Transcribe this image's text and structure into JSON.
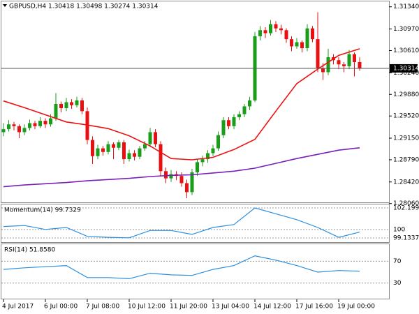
{
  "chart_data": [
    {
      "type": "candlestick",
      "title": "GBPUSD,H4  1.30418 1.30498 1.30274 1.30314",
      "categories": [
        "4 Jul 2017",
        null,
        null,
        null,
        null,
        null,
        null,
        null,
        "6 Jul 00:00",
        null,
        null,
        null,
        null,
        null,
        null,
        null,
        "7 Jul 08:00",
        null,
        null,
        null,
        null,
        null,
        null,
        null,
        "10 Jul 12:00",
        null,
        null,
        null,
        null,
        null,
        null,
        null,
        "11 Jul 20:00",
        null,
        null,
        null,
        null,
        null,
        null,
        null,
        "13 Jul 04:00",
        null,
        null,
        null,
        null,
        null,
        null,
        null,
        "14 Jul 12:00",
        null,
        null,
        null,
        null,
        null,
        null,
        null,
        "17 Jul 16:00",
        null,
        null,
        null,
        null,
        null,
        null,
        null,
        "19 Jul 00:00",
        null,
        null,
        null,
        null
      ],
      "candles": [
        {
          "open": 1.2925,
          "high": 1.294,
          "low": 1.2918,
          "close": 1.293
        },
        {
          "open": 1.293,
          "high": 1.2945,
          "low": 1.2926,
          "close": 1.2938
        },
        {
          "open": 1.2938,
          "high": 1.2942,
          "low": 1.2928,
          "close": 1.2935
        },
        {
          "open": 1.2935,
          "high": 1.2938,
          "low": 1.2915,
          "close": 1.2925
        },
        {
          "open": 1.2925,
          "high": 1.2938,
          "low": 1.292,
          "close": 1.2932
        },
        {
          "open": 1.2932,
          "high": 1.2946,
          "low": 1.2928,
          "close": 1.294
        },
        {
          "open": 1.294,
          "high": 1.2944,
          "low": 1.293,
          "close": 1.2935
        },
        {
          "open": 1.2935,
          "high": 1.295,
          "low": 1.2932,
          "close": 1.2944
        },
        {
          "open": 1.2944,
          "high": 1.2948,
          "low": 1.2932,
          "close": 1.2938
        },
        {
          "open": 1.2938,
          "high": 1.2955,
          "low": 1.2934,
          "close": 1.2948
        },
        {
          "open": 1.2948,
          "high": 1.299,
          "low": 1.2944,
          "close": 1.2972
        },
        {
          "open": 1.2972,
          "high": 1.2976,
          "low": 1.2958,
          "close": 1.2965
        },
        {
          "open": 1.2965,
          "high": 1.2982,
          "low": 1.296,
          "close": 1.2975
        },
        {
          "open": 1.2975,
          "high": 1.298,
          "low": 1.2964,
          "close": 1.297
        },
        {
          "open": 1.297,
          "high": 1.2984,
          "low": 1.2966,
          "close": 1.2978
        },
        {
          "open": 1.2978,
          "high": 1.2982,
          "low": 1.2955,
          "close": 1.296
        },
        {
          "open": 1.296,
          "high": 1.2966,
          "low": 1.2905,
          "close": 1.2912
        },
        {
          "open": 1.2912,
          "high": 1.2918,
          "low": 1.2872,
          "close": 1.2885
        },
        {
          "open": 1.2885,
          "high": 1.2904,
          "low": 1.288,
          "close": 1.2898
        },
        {
          "open": 1.2898,
          "high": 1.2902,
          "low": 1.2886,
          "close": 1.2892
        },
        {
          "open": 1.2892,
          "high": 1.291,
          "low": 1.2888,
          "close": 1.2905
        },
        {
          "open": 1.2905,
          "high": 1.2908,
          "low": 1.288,
          "close": 1.2899
        },
        {
          "open": 1.2899,
          "high": 1.2912,
          "low": 1.2895,
          "close": 1.2908
        },
        {
          "open": 1.2908,
          "high": 1.2912,
          "low": 1.2872,
          "close": 1.288
        },
        {
          "open": 1.288,
          "high": 1.2896,
          "low": 1.2876,
          "close": 1.289
        },
        {
          "open": 1.289,
          "high": 1.2895,
          "low": 1.2878,
          "close": 1.2884
        },
        {
          "open": 1.2884,
          "high": 1.2902,
          "low": 1.288,
          "close": 1.2898
        },
        {
          "open": 1.2898,
          "high": 1.291,
          "low": 1.2894,
          "close": 1.2905
        },
        {
          "open": 1.2905,
          "high": 1.2932,
          "low": 1.29,
          "close": 1.2925
        },
        {
          "open": 1.2925,
          "high": 1.293,
          "low": 1.29,
          "close": 1.2905
        },
        {
          "open": 1.2905,
          "high": 1.291,
          "low": 1.2852,
          "close": 1.286
        },
        {
          "open": 1.286,
          "high": 1.2866,
          "low": 1.284,
          "close": 1.2848
        },
        {
          "open": 1.2848,
          "high": 1.2862,
          "low": 1.2842,
          "close": 1.2855
        },
        {
          "open": 1.2855,
          "high": 1.286,
          "low": 1.2845,
          "close": 1.2852
        },
        {
          "open": 1.2852,
          "high": 1.2858,
          "low": 1.2834,
          "close": 1.284
        },
        {
          "open": 1.284,
          "high": 1.2846,
          "low": 1.2815,
          "close": 1.2825
        },
        {
          "open": 1.2825,
          "high": 1.2864,
          "low": 1.282,
          "close": 1.2858
        },
        {
          "open": 1.2858,
          "high": 1.288,
          "low": 1.2852,
          "close": 1.2875
        },
        {
          "open": 1.2875,
          "high": 1.2886,
          "low": 1.2868,
          "close": 1.288
        },
        {
          "open": 1.288,
          "high": 1.2895,
          "low": 1.2874,
          "close": 1.289
        },
        {
          "open": 1.289,
          "high": 1.2904,
          "low": 1.2885,
          "close": 1.2898
        },
        {
          "open": 1.2898,
          "high": 1.2926,
          "low": 1.2894,
          "close": 1.292
        },
        {
          "open": 1.292,
          "high": 1.295,
          "low": 1.2915,
          "close": 1.2945
        },
        {
          "open": 1.2945,
          "high": 1.295,
          "low": 1.293,
          "close": 1.2935
        },
        {
          "open": 1.2935,
          "high": 1.2955,
          "low": 1.293,
          "close": 1.295
        },
        {
          "open": 1.295,
          "high": 1.296,
          "low": 1.2945,
          "close": 1.2955
        },
        {
          "open": 1.2955,
          "high": 1.2972,
          "low": 1.295,
          "close": 1.2968
        },
        {
          "open": 1.2968,
          "high": 1.2984,
          "low": 1.2962,
          "close": 1.2978
        },
        {
          "open": 1.2978,
          "high": 1.3092,
          "low": 1.2975,
          "close": 1.3085
        },
        {
          "open": 1.3085,
          "high": 1.3102,
          "low": 1.3078,
          "close": 1.3095
        },
        {
          "open": 1.3095,
          "high": 1.31,
          "low": 1.3082,
          "close": 1.309
        },
        {
          "open": 1.309,
          "high": 1.3112,
          "low": 1.3086,
          "close": 1.3105
        },
        {
          "open": 1.3105,
          "high": 1.311,
          "low": 1.3092,
          "close": 1.3098
        },
        {
          "open": 1.3098,
          "high": 1.3104,
          "low": 1.3088,
          "close": 1.3095
        },
        {
          "open": 1.3095,
          "high": 1.3098,
          "low": 1.3074,
          "close": 1.308
        },
        {
          "open": 1.308,
          "high": 1.3085,
          "low": 1.306,
          "close": 1.3068
        },
        {
          "open": 1.3068,
          "high": 1.3082,
          "low": 1.3064,
          "close": 1.3075
        },
        {
          "open": 1.3075,
          "high": 1.3078,
          "low": 1.3058,
          "close": 1.3065
        },
        {
          "open": 1.3065,
          "high": 1.3105,
          "low": 1.306,
          "close": 1.3098
        },
        {
          "open": 1.3098,
          "high": 1.3102,
          "low": 1.3075,
          "close": 1.308
        },
        {
          "open": 1.308,
          "high": 1.3125,
          "low": 1.3025,
          "close": 1.3032
        },
        {
          "open": 1.3032,
          "high": 1.304,
          "low": 1.3012,
          "close": 1.3025
        },
        {
          "open": 1.3025,
          "high": 1.3064,
          "low": 1.302,
          "close": 1.305
        },
        {
          "open": 1.305,
          "high": 1.3055,
          "low": 1.3038,
          "close": 1.3045
        },
        {
          "open": 1.3045,
          "high": 1.305,
          "low": 1.303,
          "close": 1.3038
        },
        {
          "open": 1.3038,
          "high": 1.3042,
          "low": 1.3025,
          "close": 1.3035
        },
        {
          "open": 1.3035,
          "high": 1.3062,
          "low": 1.303,
          "close": 1.3055
        },
        {
          "open": 1.3055,
          "high": 1.3058,
          "low": 1.3018,
          "close": 1.30418
        },
        {
          "open": 1.30418,
          "high": 1.30498,
          "low": 1.30274,
          "close": 1.30314
        }
      ],
      "up_color": "#1a9e1a",
      "down_color": "#e81010",
      "series": [
        {
          "color": "#ee1111",
          "x": [
            0,
            4,
            8,
            12,
            16,
            20,
            24,
            28,
            32,
            36,
            40,
            44,
            48,
            52,
            56,
            60,
            64,
            68
          ],
          "values": [
            1.2977,
            1.2966,
            1.2954,
            1.2942,
            1.2937,
            1.2931,
            1.2919,
            1.2902,
            1.2881,
            1.2879,
            1.2883,
            1.2896,
            1.2913,
            1.296,
            1.3006,
            1.303,
            1.3053,
            1.3064
          ]
        },
        {
          "color": "#7a1fb8",
          "x": [
            0,
            4,
            8,
            12,
            16,
            20,
            24,
            28,
            32,
            36,
            40,
            44,
            48,
            52,
            56,
            60,
            64,
            68
          ],
          "values": [
            1.2834,
            1.2837,
            1.2839,
            1.2841,
            1.2844,
            1.2846,
            1.2848,
            1.2851,
            1.2853,
            1.2854,
            1.2857,
            1.286,
            1.2865,
            1.2873,
            1.2881,
            1.2888,
            1.2895,
            1.2899
          ]
        }
      ],
      "price_line": {
        "value": 1.30314,
        "label": "1.30314"
      },
      "ylim": [
        1.2808,
        1.3143
      ],
      "yticks": [
        {
          "value": 1.3134,
          "label": "1.31340"
        },
        {
          "value": 1.3097,
          "label": "1.30970"
        },
        {
          "value": 1.3061,
          "label": "1.30610"
        },
        {
          "value": 1.3024,
          "label": "1.30240"
        },
        {
          "value": 1.2988,
          "label": "1.29880"
        },
        {
          "value": 1.2952,
          "label": "1.29520"
        },
        {
          "value": 1.2915,
          "label": "1.29150"
        },
        {
          "value": 1.2879,
          "label": "1.28790"
        },
        {
          "value": 1.2842,
          "label": "1.28420"
        },
        {
          "value": 1.2806,
          "label": "1.28060"
        }
      ]
    },
    {
      "type": "line",
      "title": "Momentum(14) 99.7329",
      "color": "#2b8fe0",
      "x": [
        0,
        4,
        8,
        12,
        16,
        20,
        24,
        28,
        32,
        36,
        40,
        44,
        48,
        52,
        56,
        60,
        64,
        68
      ],
      "values": [
        100.3,
        100.4,
        100.0,
        100.2,
        99.3,
        99.2,
        99.15,
        99.9,
        99.9,
        99.5,
        100.2,
        100.5,
        102.2,
        101.6,
        101.0,
        100.2,
        99.2,
        99.7329
      ],
      "ylim": [
        99.1337,
        102.1994
      ],
      "yticks": [
        102.1994,
        100,
        99.1337
      ]
    },
    {
      "type": "line",
      "title": "RSI(14) 51.8580",
      "color": "#2b8fe0",
      "x": [
        0,
        4,
        8,
        12,
        16,
        20,
        24,
        28,
        32,
        36,
        40,
        44,
        48,
        52,
        56,
        60,
        64,
        68
      ],
      "values": [
        55,
        58,
        60,
        62,
        40,
        40,
        38,
        48,
        45,
        44,
        55,
        62,
        80,
        72,
        62,
        50,
        53,
        51.858
      ],
      "ylim": [
        0,
        100
      ],
      "yticks": [
        70,
        30
      ]
    }
  ]
}
